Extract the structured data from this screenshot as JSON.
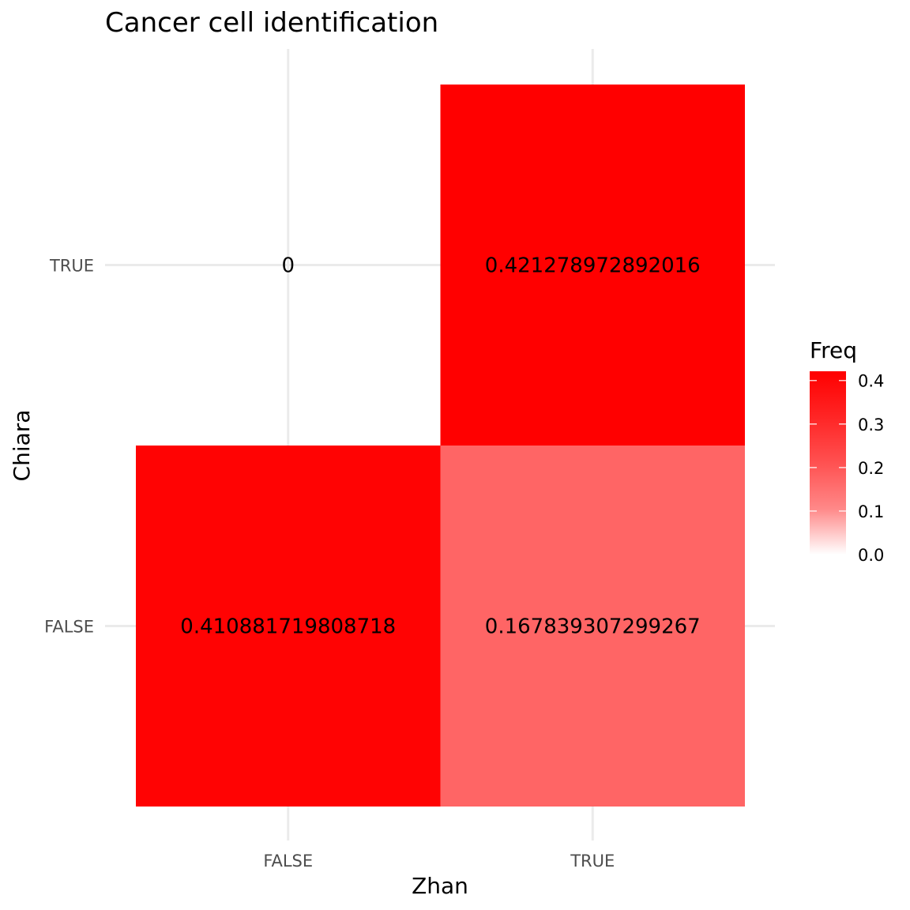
{
  "chart_data": {
    "type": "heatmap",
    "title": "Cancer cell identification",
    "xlabel": "Zhan",
    "ylabel": "Chiara",
    "x_categories": [
      "FALSE",
      "TRUE"
    ],
    "y_categories": [
      "FALSE",
      "TRUE"
    ],
    "cells": [
      {
        "x": "FALSE",
        "y": "FALSE",
        "value": 0.410881719808718,
        "label": "0.410881719808718"
      },
      {
        "x": "TRUE",
        "y": "FALSE",
        "value": 0.167839307299267,
        "label": "0.167839307299267"
      },
      {
        "x": "FALSE",
        "y": "TRUE",
        "value": 0,
        "label": "0"
      },
      {
        "x": "TRUE",
        "y": "TRUE",
        "value": 0.421278972892016,
        "label": "0.421278972892016"
      }
    ],
    "legend": {
      "title": "Freq",
      "position": "right",
      "ticks": [
        0.0,
        0.1,
        0.2,
        0.3,
        0.4
      ],
      "tick_labels": [
        "0.0",
        "0.1",
        "0.2",
        "0.3",
        "0.4"
      ],
      "range": [
        0,
        0.421278972892016
      ],
      "low_color": "#ffffff",
      "high_color": "#ff0000"
    },
    "grid": true,
    "theme": "minimal"
  }
}
